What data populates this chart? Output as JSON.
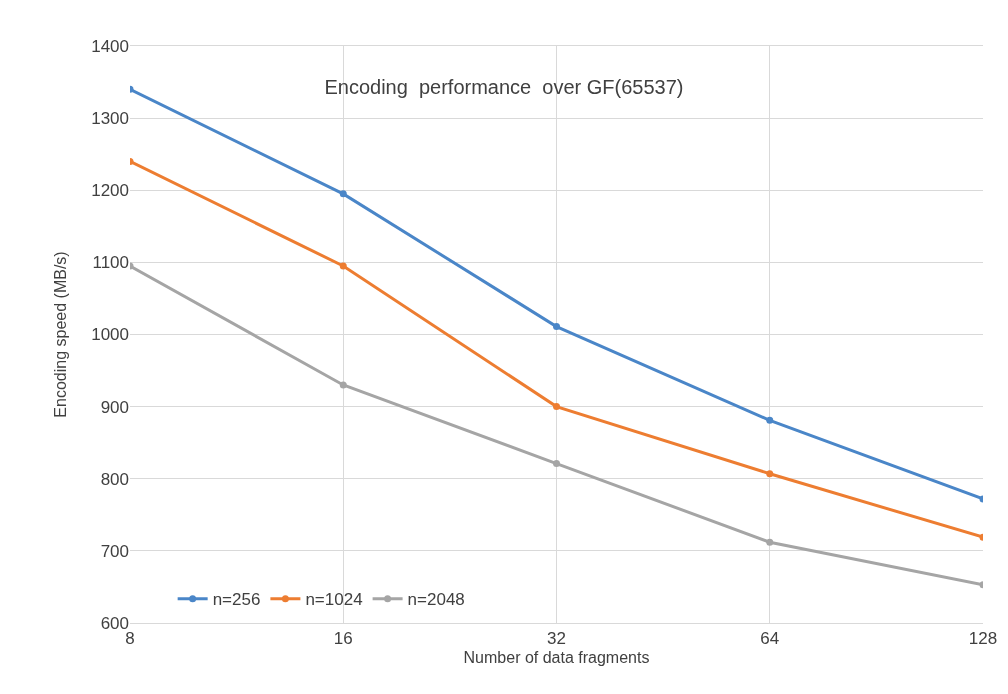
{
  "chart_data": {
    "type": "line",
    "title": "Encoding  performance  over GF(65537)",
    "xlabel": "Number of data fragments",
    "ylabel": "Encoding speed (MB/s)",
    "categories": [
      "8",
      "16",
      "32",
      "64",
      "128"
    ],
    "series": [
      {
        "name": "n=256",
        "color": "#4a86c8",
        "values": [
          1340,
          1195,
          1011,
          881,
          772
        ]
      },
      {
        "name": "n=1024",
        "color": "#ed7d31",
        "values": [
          1240,
          1095,
          900,
          807,
          719
        ]
      },
      {
        "name": "n=2048",
        "color": "#a5a5a5",
        "values": [
          1095,
          930,
          821,
          712,
          653
        ]
      }
    ],
    "ylim": [
      600,
      1400
    ],
    "yticks": [
      600,
      700,
      800,
      900,
      1000,
      1100,
      1200,
      1300,
      1400
    ],
    "grid": true,
    "legend": "bottom",
    "marker": "circle",
    "line_style": "solid"
  }
}
